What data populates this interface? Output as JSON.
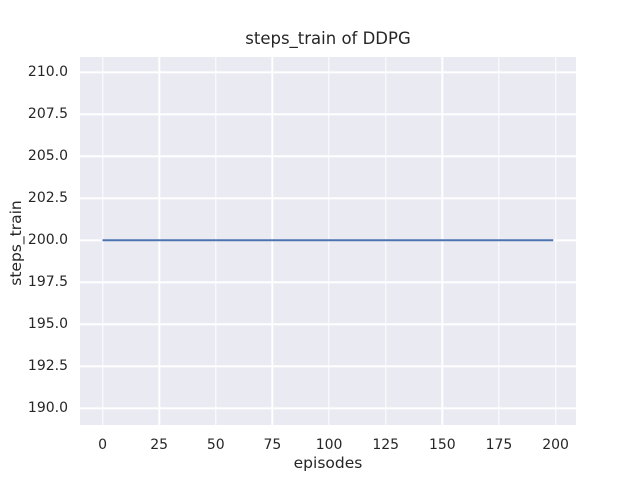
{
  "chart_data": {
    "type": "line",
    "title": "steps_train of DDPG",
    "xlabel": "episodes",
    "ylabel": "steps_train",
    "xlim": [
      -9.95,
      209.0
    ],
    "ylim": [
      189.0,
      210.9
    ],
    "xticks": [
      0,
      25,
      50,
      75,
      100,
      125,
      150,
      175,
      200
    ],
    "xtick_labels": [
      "0",
      "25",
      "50",
      "75",
      "100",
      "125",
      "150",
      "175",
      "200"
    ],
    "yticks": [
      190.0,
      192.5,
      195.0,
      197.5,
      200.0,
      202.5,
      205.0,
      207.5,
      210.0
    ],
    "ytick_labels": [
      "190.0",
      "192.5",
      "195.0",
      "197.5",
      "200.0",
      "202.5",
      "205.0",
      "207.5",
      "210.0"
    ],
    "grid": true,
    "legend": false,
    "style": {
      "figure_background": "#ffffff",
      "plot_background": "#eaeaf2",
      "grid_color": "#ffffff",
      "text_color": "#262626",
      "line_width": 2
    },
    "series": [
      {
        "name": "steps_train",
        "color": "#4c72b0",
        "x": [
          0,
          199
        ],
        "y": [
          200,
          200
        ]
      }
    ]
  }
}
